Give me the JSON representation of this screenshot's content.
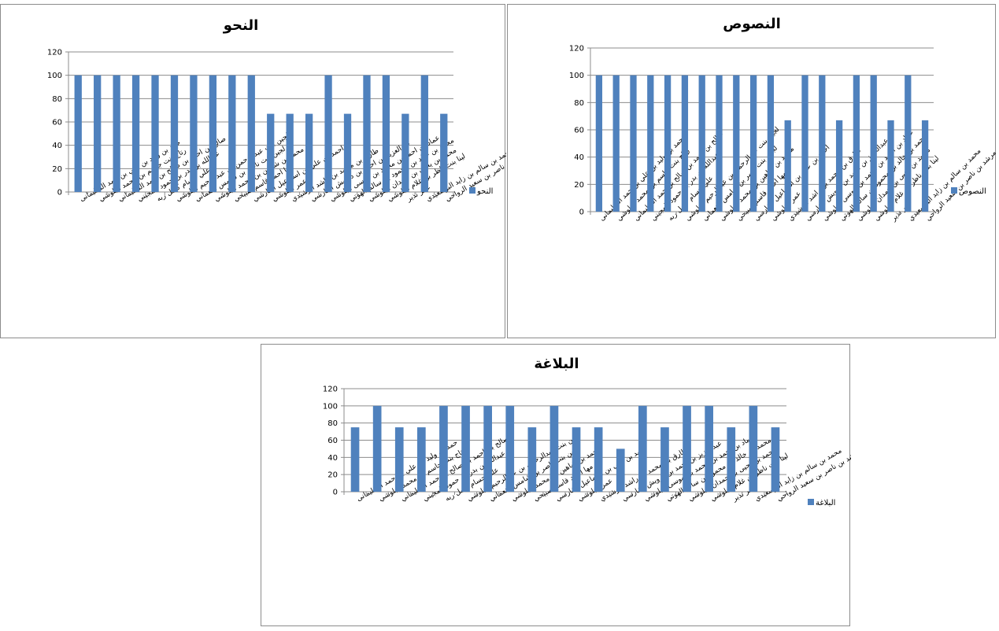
{
  "chart_data": [
    {
      "type": "bar",
      "title": "النحو",
      "legend": "النحو",
      "legend_position": "right",
      "grid": true,
      "ylim": [
        0,
        120
      ],
      "yticks": [
        0,
        20,
        40,
        60,
        80,
        100,
        120
      ],
      "categories": [
        "حمد بن وليد بن علي بن حمد السليمانی",
        "رتاج بنت جاسم بن محمد البلوشي",
        "صالح بن احمد بن صالح بن حمد السليماني",
        "عبدالله بن بدر بن حمود المجيني",
        "علي حسام كامل ربه",
        "لجين بنت عبدالرحمن بن عبدالرحيم البلوشي",
        "لجين بنت ناصر بن شامس النعماني",
        "محمد بن شاهين بن محمد البلوشي",
        "مها احمد قاسم صبيحي",
        "احمد بن علي بن اسماعيل الفارسي",
        "عمر البلوشي",
        "طارق بن محمد بن راشد الرشيدي",
        "عبدالعزيز بن احمد بن درويش الفارسي",
        "عماد بن احمد بن محمد بن موسى البلوشي",
        "محمد بن خالد بن محمود بن سالم الهوتي",
        "محمد بن يحيى بن حمدان البلوشي",
        "لينا بنت ناظر بن غلام البلوشي",
        "عمر نذير",
        "محمد بن سالم بن زايد البوسعيدي",
        "مرشد بن ناصر بن سعيد الرواحي"
      ],
      "values": [
        100,
        100,
        100,
        100,
        100,
        100,
        100,
        100,
        100,
        100,
        67,
        67,
        67,
        100,
        67,
        100,
        100,
        67,
        100,
        67
      ]
    },
    {
      "type": "bar",
      "title": "النصوص",
      "legend": "النصوص",
      "legend_position": "right",
      "grid": true,
      "ylim": [
        0,
        120
      ],
      "yticks": [
        0,
        20,
        40,
        60,
        80,
        100,
        120
      ],
      "categories": [
        "حمد بن وليد بن علي بن حمد السليمانی",
        "رتاج بنت جاسم بن محمد البلوشي",
        "صالح بن احمد بن صالح بن حمد السليماني",
        "عبدالله بن بدر بن حمود المجيني",
        "علي حسام كامل ربه",
        "لجين بنت عبدالرحمن بن عبدالرحيم البلوشي",
        "لجين بنت ناصر بن شامس النعماني",
        "محمد بن شاهين بن محمد البلوشي",
        "مها احمد قاسم صبيحي",
        "احمد بن علي بن اسماعيل الفارسي",
        "عمر البلوشي",
        "طارق بن محمد بن راشد الرشيدي",
        "عبدالعزيز بن احمد بن درويش الفارسي",
        "عماد بن احمد بن محمد بن موسى البلوشي",
        "محمد بن خالد بن محمود بن سالم الهوتي",
        "محمد بن يحيى بن حمدان البلوشي",
        "لينا بنت ناظر بن غلام البلوشي",
        "عمر نذير",
        "محمد بن سالم بن زايد البوسعيدي",
        "مرشد بن ناصر بن سعيد الرواحي"
      ],
      "values": [
        100,
        100,
        100,
        100,
        100,
        100,
        100,
        100,
        100,
        100,
        100,
        67,
        100,
        100,
        67,
        100,
        100,
        67,
        100,
        67
      ]
    },
    {
      "type": "bar",
      "title": "البلاغة",
      "legend": "البلاغة",
      "legend_position": "right",
      "grid": true,
      "ylim": [
        0,
        120
      ],
      "yticks": [
        0,
        20,
        40,
        60,
        80,
        100,
        120
      ],
      "categories": [
        "حمد بن وليد بن علي بن حمد السليمانی",
        "رتاج بنت جاسم بن محمد البلوشي",
        "صالح بن احمد بن صالح بن حمد السليماني",
        "عبدالله بن بدر بن حمود المجيني",
        "علي حسام كامل ربه",
        "لجين بنت عبدالرحمن بن عبدالرحيم البلوشي",
        "لجين بنت ناصر بن شامس النعماني",
        "محمد بن شاهين بن محمد البلوشي",
        "مها احمد قاسم صبيحي",
        "احمد بن علي بن اسماعيل الفارسي",
        "عمر البلوشي",
        "طارق بن محمد بن راشد الرشيدي",
        "عبدالعزيز بن احمد بن درويش الفارسي",
        "عماد بن احمد بن محمد بن موسى البلوشي",
        "محمد بن خالد بن محمود بن سالم الهوتي",
        "محمد بن يحيى بن حمدان البلوشي",
        "لينا بنت ناظر بن غلام البلوشي",
        "عمر نذير",
        "محمد بن سالم بن زايد البوسعيدي",
        "مرشد بن ناصر بن سعيد الرواحي"
      ],
      "values": [
        75,
        100,
        75,
        75,
        100,
        100,
        100,
        100,
        75,
        100,
        75,
        75,
        50,
        100,
        75,
        100,
        100,
        75,
        100,
        75
      ]
    }
  ],
  "colors": {
    "bar": "#4f81bd",
    "gridline": "#8c8c8c",
    "axis": "#8c8c8c",
    "panel_border": "#8c8c8c"
  }
}
